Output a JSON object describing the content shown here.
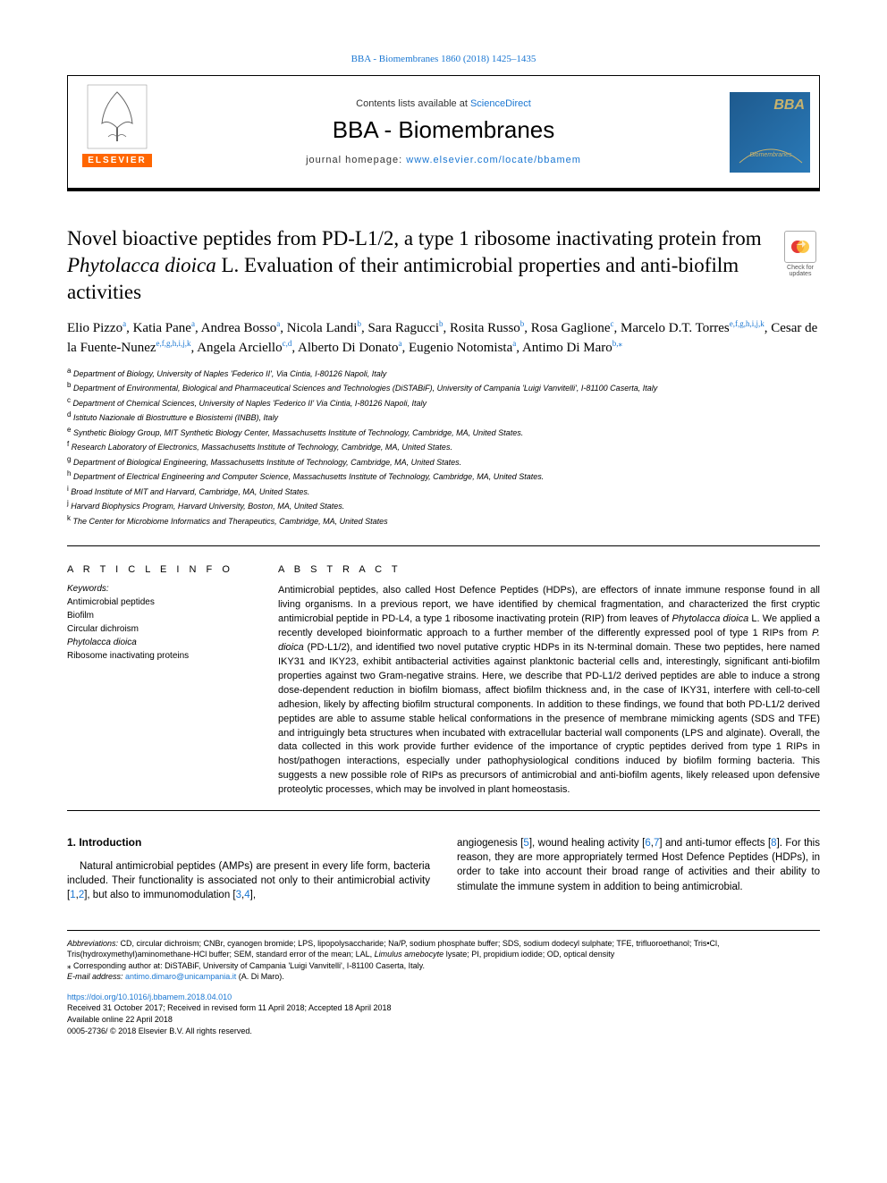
{
  "top_citation": "BBA - Biomembranes 1860 (2018) 1425–1435",
  "header": {
    "contents_prefix": "Contents lists available at ",
    "contents_link": "ScienceDirect",
    "journal": "BBA - Biomembranes",
    "homepage_prefix": "journal homepage: ",
    "homepage_link": "www.elsevier.com/locate/bbamem",
    "elsevier": "ELSEVIER",
    "bba_logo_text": "BBA",
    "bba_logo_sub": "Biomembranes"
  },
  "check_updates": "Check for updates",
  "title_parts": {
    "p1": "Novel bioactive peptides from PD-L1/2, a type 1 ribosome inactivating protein from ",
    "em": "Phytolacca dioica",
    "p2": " L. Evaluation of their antimicrobial properties and anti-biofilm activities"
  },
  "authors_html": "Elio Pizzo<sup class='sup-link'>a</sup>, Katia Pane<sup class='sup-link'>a</sup>, Andrea Bosso<sup class='sup-link'>a</sup>, Nicola Landi<sup class='sup-link'>b</sup>, Sara Ragucci<sup class='sup-link'>b</sup>, Rosita Russo<sup class='sup-link'>b</sup>, Rosa Gaglione<sup class='sup-link'>c</sup>, Marcelo D.T. Torres<sup class='sup-link'>e,f,g,h,i,j,k</sup>, Cesar de la Fuente-Nunez<sup class='sup-link'>e,f,g,h,i,j,k</sup>, Angela Arciello<sup class='sup-link'>c,d</sup>, Alberto Di Donato<sup class='sup-link'>a</sup>, Eugenio Notomista<sup class='sup-link'>a</sup>, Antimo Di Maro<sup class='sup-link'>b,</sup><sup class='sup-link'>⁎</sup>",
  "affiliations": [
    {
      "sup": "a",
      "text": "Department of Biology, University of Naples 'Federico II', Via Cintia, I-80126 Napoli, Italy"
    },
    {
      "sup": "b",
      "text": "Department of Environmental, Biological and Pharmaceutical Sciences and Technologies (DiSTABiF), University of Campania 'Luigi Vanvitelli', I-81100 Caserta, Italy"
    },
    {
      "sup": "c",
      "text": "Department of Chemical Sciences, University of Naples 'Federico II' Via Cintia, I-80126 Napoli, Italy"
    },
    {
      "sup": "d",
      "text": "Istituto Nazionale di Biostrutture e Biosistemi (INBB), Italy"
    },
    {
      "sup": "e",
      "text": "Synthetic Biology Group, MIT Synthetic Biology Center, Massachusetts Institute of Technology, Cambridge, MA, United States."
    },
    {
      "sup": "f",
      "text": "Research Laboratory of Electronics, Massachusetts Institute of Technology, Cambridge, MA, United States."
    },
    {
      "sup": "g",
      "text": "Department of Biological Engineering, Massachusetts Institute of Technology, Cambridge, MA, United States."
    },
    {
      "sup": "h",
      "text": "Department of Electrical Engineering and Computer Science, Massachusetts Institute of Technology, Cambridge, MA, United States."
    },
    {
      "sup": "i",
      "text": "Broad Institute of MIT and Harvard, Cambridge, MA, United States."
    },
    {
      "sup": "j",
      "text": "Harvard Biophysics Program, Harvard University, Boston, MA, United States."
    },
    {
      "sup": "k",
      "text": "The Center for Microbiome Informatics and Therapeutics, Cambridge, MA, United States"
    }
  ],
  "article_info_head": "A R T I C L E  I N F O",
  "abstract_head": "A B S T R A C T",
  "keywords_label": "Keywords:",
  "keywords": [
    "Antimicrobial peptides",
    "Biofilm",
    "Circular dichroism",
    "Phytolacca dioica",
    "Ribosome inactivating proteins"
  ],
  "abstract": "Antimicrobial peptides, also called Host Defence Peptides (HDPs), are effectors of innate immune response found in all living organisms. In a previous report, we have identified by chemical fragmentation, and characterized the first cryptic antimicrobial peptide in PD-L4, a type 1 ribosome inactivating protein (RIP) from leaves of Phytolacca dioica L. We applied a recently developed bioinformatic approach to a further member of the differently expressed pool of type 1 RIPs from P. dioica (PD-L1/2), and identified two novel putative cryptic HDPs in its N-terminal domain. These two peptides, here named IKY31 and IKY23, exhibit antibacterial activities against planktonic bacterial cells and, interestingly, significant anti-biofilm properties against two Gram-negative strains. Here, we describe that PD-L1/2 derived peptides are able to induce a strong dose-dependent reduction in biofilm biomass, affect biofilm thickness and, in the case of IKY31, interfere with cell-to-cell adhesion, likely by affecting biofilm structural components. In addition to these findings, we found that both PD-L1/2 derived peptides are able to assume stable helical conformations in the presence of membrane mimicking agents (SDS and TFE) and intriguingly beta structures when incubated with extracellular bacterial wall components (LPS and alginate). Overall, the data collected in this work provide further evidence of the importance of cryptic peptides derived from type 1 RIPs in host/pathogen interactions, especially under pathophysiological conditions induced by biofilm forming bacteria. This suggests a new possible role of RIPs as precursors of antimicrobial and anti-biofilm agents, likely released upon defensive proteolytic processes, which may be involved in plant homeostasis.",
  "intro": {
    "head": "1. Introduction",
    "col1": "Natural antimicrobial peptides (AMPs) are present in every life form, bacteria included. Their functionality is associated not only to their antimicrobial activity [1,2], but also to immunomodulation [3,4],",
    "col2": "angiogenesis [5], wound healing activity [6,7] and anti-tumor effects [8]. For this reason, they are more appropriately termed Host Defence Peptides (HDPs), in order to take into account their broad range of activities and their ability to stimulate the immune system in addition to being antimicrobial."
  },
  "footer": {
    "abbrev_label": "Abbreviations:",
    "abbrev_text": " CD, circular dichroism; CNBr, cyanogen bromide; LPS, lipopolysaccharide; Na/P, sodium phosphate buffer; SDS, sodium dodecyl sulphate; TFE, trifluoroethanol; Tris•Cl, Tris(hydroxymethyl)aminomethane-HCl buffer; SEM, standard error of the mean; LAL, Limulus amebocyte lysate; PI, propidium iodide; OD, optical density",
    "corr": "⁎ Corresponding author at: DiSTABiF, University of Campania 'Luigi Vanvitelli', I-81100 Caserta, Italy.",
    "email_label": "E-mail address: ",
    "email": "antimo.dimaro@unicampania.it",
    "email_suffix": " (A. Di Maro).",
    "doi": "https://doi.org/10.1016/j.bbamem.2018.04.010",
    "received": "Received 31 October 2017; Received in revised form 11 April 2018; Accepted 18 April 2018",
    "available": "Available online 22 April 2018",
    "copyright": "0005-2736/ © 2018 Elsevier B.V. All rights reserved."
  },
  "colors": {
    "link": "#1976d2",
    "orange": "#ff6600",
    "bba_bg1": "#1e5a8e",
    "bba_bg2": "#2a7ab8",
    "bba_gold": "#c8b36e"
  }
}
